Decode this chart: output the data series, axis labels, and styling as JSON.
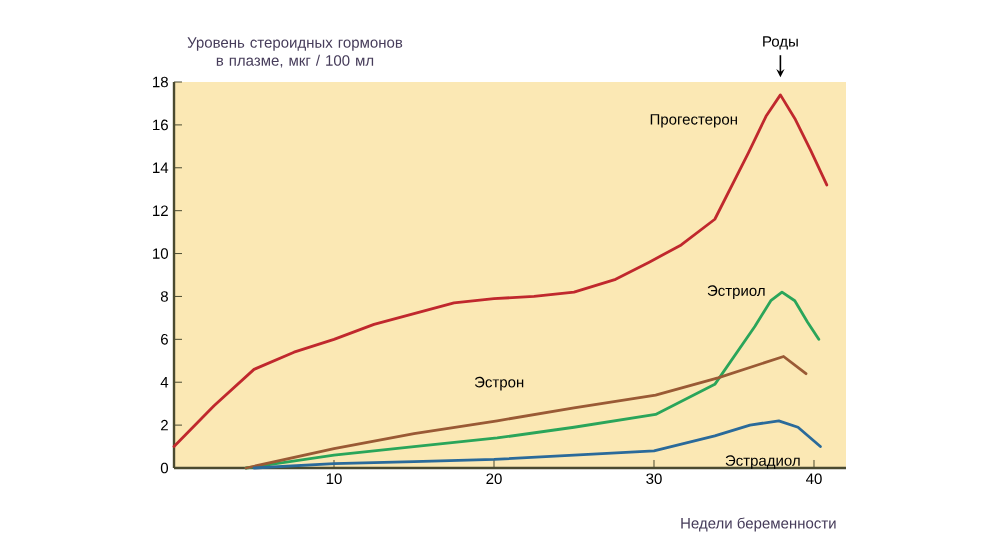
{
  "chart_data": {
    "type": "line",
    "ylabel": "Уровень стероидных гормонов\nв плазме, мкг / 100 мл",
    "xlabel": "Недели беременности",
    "annotations": [
      "Роды"
    ],
    "xlim": [
      0,
      42
    ],
    "ylim": [
      0,
      18
    ],
    "xticks": [
      10,
      20,
      30,
      40
    ],
    "yticks": [
      0,
      2,
      4,
      6,
      8,
      10,
      12,
      14,
      16,
      18
    ],
    "grid": false,
    "legend": false,
    "marker": "none",
    "line_style": "solid",
    "series": [
      {
        "name": "Прогестерон",
        "color": "#c0282d",
        "x": [
          0,
          2.5,
          5,
          7.5,
          10,
          12.5,
          15,
          17.5,
          20,
          22.5,
          25,
          27.6,
          29.7,
          31.7,
          33.8,
          35.9,
          37.0,
          37.9,
          38.8,
          39.8,
          40.8
        ],
        "values": [
          1.0,
          2.9,
          4.6,
          5.4,
          6.0,
          6.7,
          7.2,
          7.7,
          7.9,
          8.0,
          8.2,
          8.8,
          9.6,
          10.4,
          11.6,
          14.7,
          16.4,
          17.4,
          16.3,
          14.8,
          13.2
        ]
      },
      {
        "name": "Эстриол",
        "color": "#2aa55a",
        "x": [
          4.5,
          10,
          15,
          20.2,
          25,
          30.1,
          33.8,
          36.3,
          37.3,
          38.0,
          38.8,
          39.6,
          40.3
        ],
        "values": [
          0,
          0.6,
          1.0,
          1.4,
          1.9,
          2.5,
          3.9,
          6.6,
          7.8,
          8.2,
          7.8,
          6.8,
          6.0
        ]
      },
      {
        "name": "Эстрон",
        "color": "#9a5a35",
        "x": [
          4.5,
          10,
          15,
          20.2,
          25,
          30.1,
          34,
          38.1,
          39.5
        ],
        "values": [
          0,
          0.9,
          1.6,
          2.2,
          2.8,
          3.4,
          4.2,
          5.2,
          4.4
        ]
      },
      {
        "name": "Эстрадиол",
        "color": "#2a6a9a",
        "x": [
          5,
          10,
          15,
          20,
          25,
          30,
          33.8,
          36,
          37.8,
          39,
          40.4
        ],
        "values": [
          0,
          0.2,
          0.3,
          0.4,
          0.6,
          0.8,
          1.5,
          2.0,
          2.2,
          1.9,
          1.0
        ]
      }
    ]
  }
}
